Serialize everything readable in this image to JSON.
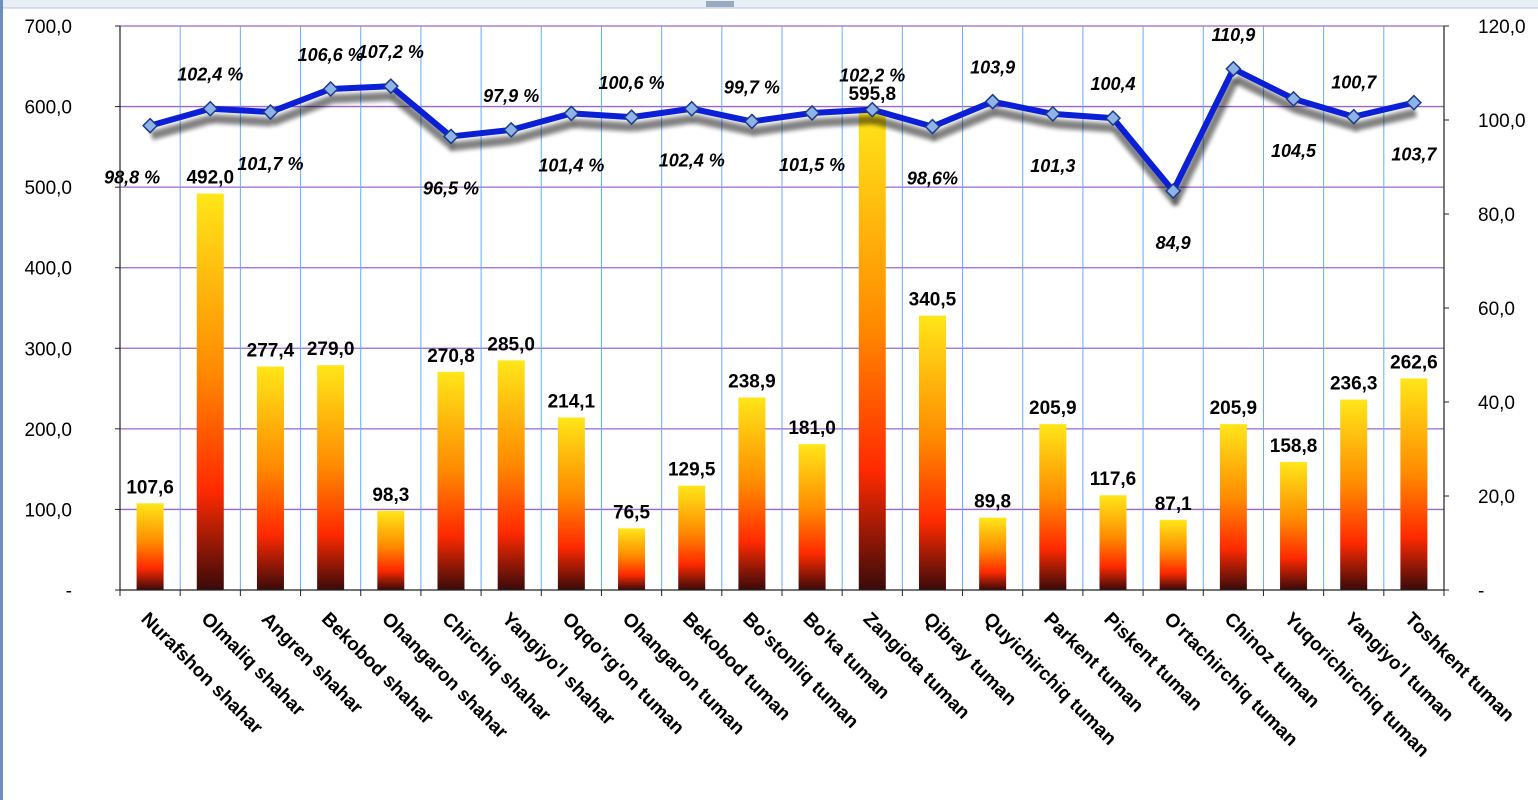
{
  "chart_data": {
    "type": "bar",
    "categories": [
      "Nurafshon shahar",
      "Olmaliq shahar",
      "Angren shahar",
      "Bekobod shahar",
      "Ohangaron shahar",
      "Chirchiq shahar",
      "Yangiyo'l shahar",
      "Oqqo'rg'on tuman",
      "Ohangaron tuman",
      "Bekobod tuman",
      "Bo'stonliq tuman",
      "Bo'ka tuman",
      "Zangiota tuman",
      "Qibray tuman",
      "Quyichirchiq tuman",
      "Parkent tuman",
      "Piskent tuman",
      "O'rtachirchiq tuman",
      "Chinoz tuman",
      "Yuqorichirchiq tuman",
      "Yangiyo'l tuman",
      "Toshkent tuman"
    ],
    "series": [
      {
        "axis": "left",
        "kind": "bar",
        "values": [
          107.6,
          492.0,
          277.4,
          279.0,
          98.3,
          270.8,
          285.0,
          214.1,
          76.5,
          129.5,
          238.9,
          181.0,
          595.8,
          340.5,
          89.8,
          205.9,
          117.6,
          87.1,
          205.9,
          158.8,
          236.3,
          262.6
        ],
        "labels": [
          "107,6",
          "492,0",
          "277,4",
          "279,0",
          "98,3",
          "270,8",
          "285,0",
          "214,1",
          "76,5",
          "129,5",
          "238,9",
          "181,0",
          "595,8",
          "340,5",
          "89,8",
          "205,9",
          "117,6",
          "87,1",
          "205,9",
          "158,8",
          "236,3",
          "262,6"
        ]
      },
      {
        "axis": "right",
        "kind": "line",
        "values": [
          98.8,
          102.4,
          101.7,
          106.6,
          107.2,
          96.5,
          97.9,
          101.4,
          100.6,
          102.4,
          99.7,
          101.5,
          102.2,
          98.6,
          103.9,
          101.3,
          100.4,
          84.9,
          110.9,
          104.5,
          100.7,
          103.7
        ],
        "labels": [
          "98,8 %",
          "102,4 %",
          "101,7 %",
          "106,6 %",
          "107,2 %",
          "96,5 %",
          "97,9 %",
          "101,4  %",
          "100,6 %",
          "102,4  %",
          "99,7 %",
          "101,5 %",
          "102,2 %",
          "98,6%",
          "103,9",
          "101,3",
          "100,4",
          "84,9",
          "110,9",
          "104,5",
          "100,7",
          "103,7"
        ],
        "color": "#0a1fd6"
      }
    ],
    "y_left": {
      "range": [
        0,
        700
      ],
      "ticks": [
        0,
        100,
        200,
        300,
        400,
        500,
        600,
        700
      ],
      "tick_labels": [
        "-",
        "100,0",
        "200,0",
        "300,0",
        "400,0",
        "500,0",
        "600,0",
        "700,0"
      ]
    },
    "y_right": {
      "range": [
        0,
        120
      ],
      "ticks": [
        0,
        20,
        40,
        60,
        80,
        100,
        120
      ],
      "tick_labels": [
        "-",
        "20,0",
        "40,0",
        "60,0",
        "80,0",
        "100,0",
        "120,0"
      ]
    },
    "grid": true,
    "colors": {
      "bar_top": "#ffe619",
      "bar_mid": "#ff3300",
      "bar_bottom": "#3a0a0a",
      "line": "#0a1fd6",
      "marker": "#8fb3e8",
      "hgrid": "#9966cc",
      "vgrid": "#66aaff"
    }
  }
}
